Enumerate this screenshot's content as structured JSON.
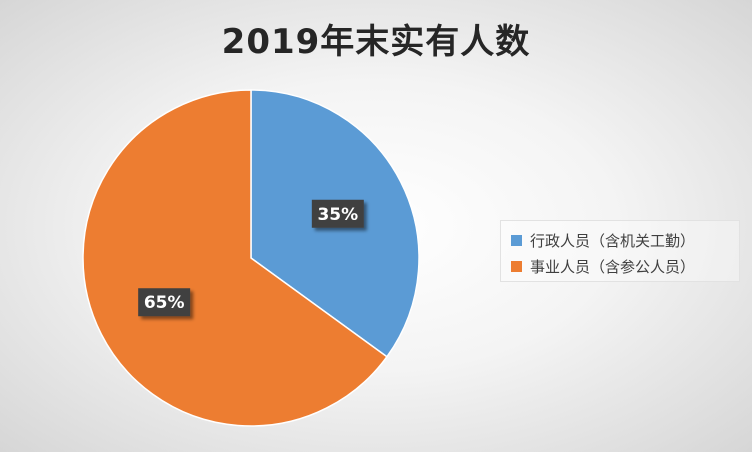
{
  "chart_data": {
    "type": "pie",
    "title": "2019年末实有人数",
    "slices": [
      {
        "name": "行政人员（含机关工勤）",
        "value": 35,
        "label": "35%",
        "color": "#5B9BD5"
      },
      {
        "name": "事业人员（含参公人员）",
        "value": 65,
        "label": "65%",
        "color": "#ED7D31"
      }
    ],
    "legend_position": "right"
  }
}
